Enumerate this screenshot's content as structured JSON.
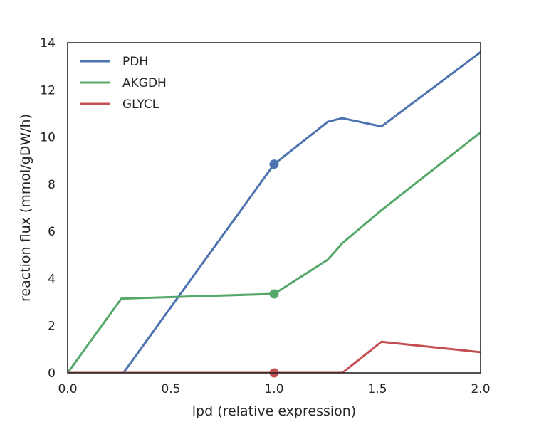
{
  "chart_data": {
    "type": "line",
    "title": "",
    "xlabel": "lpd (relative expression)",
    "ylabel": "reaction flux (mmol/gDW/h)",
    "xlim": [
      0.0,
      2.0
    ],
    "ylim": [
      0,
      14
    ],
    "xticks": [
      "0.0",
      "0.5",
      "1.0",
      "1.5",
      "2.0"
    ],
    "yticks": [
      "0",
      "2",
      "4",
      "6",
      "8",
      "10",
      "12",
      "14"
    ],
    "grid": false,
    "legend_position": "top-left",
    "series": [
      {
        "name": "PDH",
        "color": "#4c72b0",
        "x": [
          0.0,
          0.27,
          1.0,
          1.26,
          1.33,
          1.52,
          2.0
        ],
        "y": [
          0.0,
          0.0,
          8.85,
          10.65,
          10.8,
          10.45,
          13.6
        ],
        "marker": {
          "x": 1.0,
          "y": 8.85
        }
      },
      {
        "name": "AKGDH",
        "color": "#55a868",
        "x": [
          0.0,
          0.26,
          1.0,
          1.26,
          1.33,
          1.52,
          2.0
        ],
        "y": [
          0.0,
          3.15,
          3.35,
          4.8,
          5.5,
          6.9,
          10.2
        ],
        "marker": {
          "x": 1.0,
          "y": 3.35
        }
      },
      {
        "name": "GLYCL",
        "color": "#c44e52",
        "x": [
          0.0,
          1.0,
          1.33,
          1.52,
          2.0
        ],
        "y": [
          0.0,
          0.0,
          0.0,
          1.32,
          0.88
        ],
        "marker": {
          "x": 1.0,
          "y": 0.0
        }
      }
    ]
  }
}
